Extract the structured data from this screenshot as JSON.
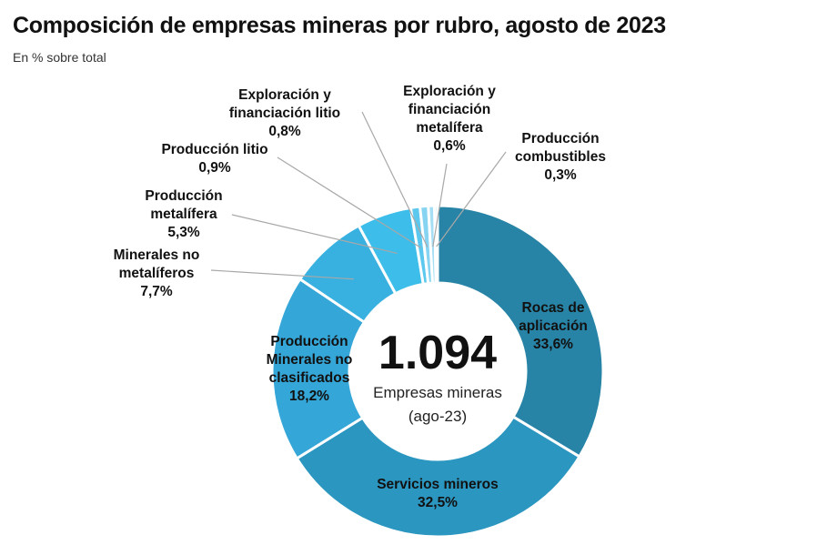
{
  "chart_data": {
    "type": "pie",
    "title": "Composición de empresas mineras por rubro, agosto de 2023",
    "subtitle": "En % sobre total",
    "center": {
      "value": "1.094",
      "label": "Empresas mineras",
      "sublabel": "(ago-23)"
    },
    "slices": [
      {
        "name": "Rocas de aplicación",
        "value": 33.6,
        "display": "33,6%",
        "color": "#2884a6"
      },
      {
        "name": "Servicios mineros",
        "value": 32.5,
        "display": "32,5%",
        "color": "#2b96c0"
      },
      {
        "name": "Producción Minerales no clasificados",
        "value": 18.2,
        "display": "18,2%",
        "color": "#35a6d8"
      },
      {
        "name": "Minerales no metalíferos",
        "value": 7.7,
        "display": "7,7%",
        "color": "#38b0e0"
      },
      {
        "name": "Producción metalífera",
        "value": 5.3,
        "display": "5,3%",
        "color": "#3cbdea"
      },
      {
        "name": "Producción litio",
        "value": 0.9,
        "display": "0,9%",
        "color": "#5cc8ee"
      },
      {
        "name": "Exploración y financiación litio",
        "value": 0.8,
        "display": "0,8%",
        "color": "#86d3f2"
      },
      {
        "name": "Exploración y financiación metalífera",
        "value": 0.6,
        "display": "0,6%",
        "color": "#a5def5"
      },
      {
        "name": "Producción combustibles",
        "value": 0.3,
        "display": "0,3%",
        "color": "#c3e9f8"
      }
    ]
  }
}
